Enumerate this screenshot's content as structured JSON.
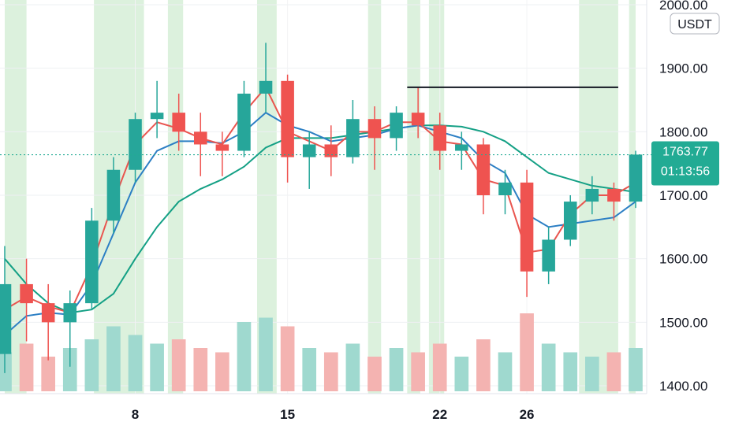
{
  "chart_data": {
    "type": "candlestick",
    "currency": "USDT",
    "y_axis": {
      "min": 1400,
      "max": 2000,
      "ticks": [
        "1400.00",
        "1500.00",
        "1600.00",
        "1700.00",
        "1800.00",
        "1900.00",
        "2000.00"
      ]
    },
    "x_axis": {
      "labels": [
        "8",
        "15",
        "22",
        "26"
      ],
      "label_positions": [
        6,
        13,
        20,
        24
      ]
    },
    "current_price": {
      "value": 1763.77,
      "label": "1763.77",
      "countdown": "01:13:56"
    },
    "resistance_line": {
      "price": 1870,
      "from_index": 18.5,
      "to_index": 28.2
    },
    "highlight_ranges": [
      [
        0.0,
        1.0
      ],
      [
        4.1,
        6.4
      ],
      [
        7.5,
        8.2
      ],
      [
        11.6,
        12.5
      ],
      [
        16.7,
        17.3
      ],
      [
        18.5,
        19.1
      ],
      [
        19.5,
        20.2
      ],
      [
        26.4,
        28.2
      ],
      [
        28.7,
        29.0
      ]
    ],
    "candles": [
      {
        "o": 1450,
        "h": 1620,
        "l": 1420,
        "c": 1560
      },
      {
        "o": 1560,
        "h": 1600,
        "l": 1470,
        "c": 1530
      },
      {
        "o": 1530,
        "h": 1560,
        "l": 1440,
        "c": 1500
      },
      {
        "o": 1500,
        "h": 1550,
        "l": 1430,
        "c": 1530
      },
      {
        "o": 1530,
        "h": 1680,
        "l": 1520,
        "c": 1660
      },
      {
        "o": 1660,
        "h": 1760,
        "l": 1640,
        "c": 1740
      },
      {
        "o": 1740,
        "h": 1830,
        "l": 1720,
        "c": 1820
      },
      {
        "o": 1820,
        "h": 1880,
        "l": 1790,
        "c": 1830
      },
      {
        "o": 1830,
        "h": 1860,
        "l": 1770,
        "c": 1800
      },
      {
        "o": 1800,
        "h": 1830,
        "l": 1730,
        "c": 1780
      },
      {
        "o": 1780,
        "h": 1800,
        "l": 1730,
        "c": 1770
      },
      {
        "o": 1770,
        "h": 1880,
        "l": 1760,
        "c": 1860
      },
      {
        "o": 1860,
        "h": 1940,
        "l": 1830,
        "c": 1880
      },
      {
        "o": 1880,
        "h": 1890,
        "l": 1720,
        "c": 1760
      },
      {
        "o": 1760,
        "h": 1800,
        "l": 1710,
        "c": 1780
      },
      {
        "o": 1780,
        "h": 1810,
        "l": 1730,
        "c": 1760
      },
      {
        "o": 1760,
        "h": 1850,
        "l": 1750,
        "c": 1820
      },
      {
        "o": 1820,
        "h": 1840,
        "l": 1740,
        "c": 1790
      },
      {
        "o": 1790,
        "h": 1840,
        "l": 1770,
        "c": 1830
      },
      {
        "o": 1830,
        "h": 1870,
        "l": 1790,
        "c": 1810
      },
      {
        "o": 1810,
        "h": 1830,
        "l": 1740,
        "c": 1770
      },
      {
        "o": 1770,
        "h": 1800,
        "l": 1740,
        "c": 1780
      },
      {
        "o": 1780,
        "h": 1790,
        "l": 1670,
        "c": 1700
      },
      {
        "o": 1700,
        "h": 1740,
        "l": 1670,
        "c": 1720
      },
      {
        "o": 1720,
        "h": 1740,
        "l": 1540,
        "c": 1580
      },
      {
        "o": 1580,
        "h": 1650,
        "l": 1560,
        "c": 1630
      },
      {
        "o": 1630,
        "h": 1700,
        "l": 1620,
        "c": 1690
      },
      {
        "o": 1690,
        "h": 1730,
        "l": 1670,
        "c": 1710
      },
      {
        "o": 1710,
        "h": 1720,
        "l": 1660,
        "c": 1690
      },
      {
        "o": 1690,
        "h": 1770,
        "l": 1680,
        "c": 1764
      }
    ],
    "volume": [
      0.45,
      0.55,
      0.4,
      0.5,
      0.6,
      0.75,
      0.65,
      0.55,
      0.6,
      0.5,
      0.45,
      0.8,
      0.85,
      0.75,
      0.5,
      0.45,
      0.55,
      0.4,
      0.5,
      0.45,
      0.55,
      0.4,
      0.6,
      0.45,
      0.9,
      0.55,
      0.45,
      0.4,
      0.45,
      0.5
    ],
    "ema_fast": [
      1520,
      1540,
      1525,
      1515,
      1590,
      1690,
      1780,
      1815,
      1805,
      1790,
      1780,
      1830,
      1870,
      1800,
      1785,
      1770,
      1800,
      1800,
      1815,
      1815,
      1785,
      1780,
      1725,
      1715,
      1610,
      1615,
      1670,
      1700,
      1700,
      1720
    ],
    "ema_mid": [
      1480,
      1510,
      1515,
      1512,
      1560,
      1640,
      1720,
      1770,
      1785,
      1785,
      1782,
      1800,
      1830,
      1810,
      1800,
      1785,
      1790,
      1795,
      1805,
      1810,
      1800,
      1790,
      1755,
      1735,
      1670,
      1650,
      1655,
      1660,
      1665,
      1690
    ],
    "ema_slow": [
      1600,
      1560,
      1530,
      1515,
      1520,
      1545,
      1600,
      1650,
      1690,
      1710,
      1725,
      1745,
      1775,
      1790,
      1790,
      1790,
      1795,
      1800,
      1805,
      1810,
      1810,
      1808,
      1800,
      1785,
      1760,
      1735,
      1725,
      1715,
      1710,
      1705
    ]
  }
}
